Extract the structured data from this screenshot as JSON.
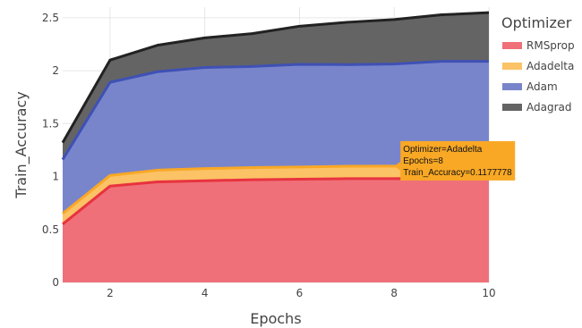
{
  "chart_data": {
    "type": "area",
    "stacked": true,
    "xlabel": "Epochs",
    "ylabel": "Train_Accuracy",
    "xlim": [
      1,
      10
    ],
    "ylim": [
      0,
      2.6
    ],
    "x": [
      1,
      2,
      3,
      4,
      5,
      6,
      7,
      8,
      9,
      10
    ],
    "x_ticks": [
      2,
      4,
      6,
      8,
      10
    ],
    "y_ticks": [
      0,
      0.5,
      1,
      1.5,
      2,
      2.5
    ],
    "y_tick_labels": [
      "0",
      "0.5",
      "1",
      "1.5",
      "2",
      "2.5"
    ],
    "grid": true,
    "legend": {
      "title": "Optimizer",
      "position": "right"
    },
    "series": [
      {
        "name": "RMSprop",
        "color": "#e8333f",
        "values": [
          0.55,
          0.91,
          0.95,
          0.96,
          0.97,
          0.975,
          0.98,
          0.98,
          0.985,
          0.985
        ]
      },
      {
        "name": "Adadelta",
        "color": "#f9a825",
        "values": [
          0.1,
          0.1,
          0.11,
          0.115,
          0.115,
          0.115,
          0.117,
          0.118,
          0.118,
          0.118
        ]
      },
      {
        "name": "Adam",
        "color": "#3f51b5",
        "values": [
          0.51,
          0.88,
          0.93,
          0.955,
          0.955,
          0.97,
          0.96,
          0.965,
          0.985,
          0.985
        ]
      },
      {
        "name": "Adagrad",
        "color": "#222222",
        "values": [
          0.16,
          0.21,
          0.25,
          0.28,
          0.31,
          0.36,
          0.4,
          0.42,
          0.44,
          0.46
        ]
      }
    ],
    "tooltip": {
      "lines": [
        "Optimizer=Adadelta",
        "Epochs=8",
        "Train_Accuracy=0.1177778"
      ],
      "color": "#f9a825",
      "series": "Adadelta",
      "x": 8
    }
  }
}
